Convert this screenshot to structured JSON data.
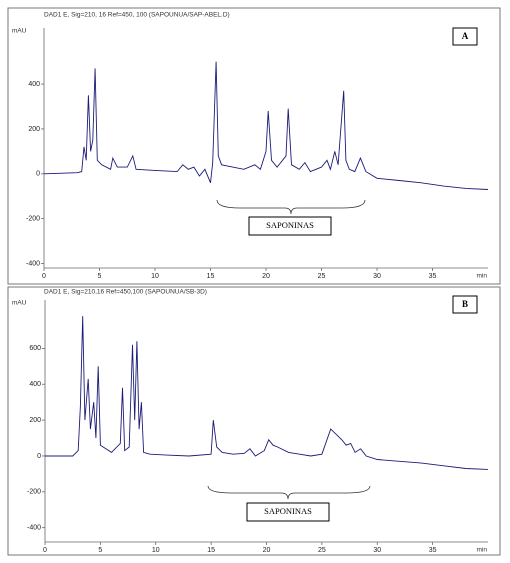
{
  "chart_data": [
    {
      "type": "line",
      "title": "DAD1 E, Sig=210, 16 Ref=450, 100 (SAPOUNUA/SAP-ABEL.D)",
      "y_label": "mAU",
      "x_label": "min",
      "panel_label": "A",
      "annotation": "SAPONINAS",
      "color": "#1c1c78",
      "xlim": [
        0,
        40
      ],
      "xticks": [
        0,
        5,
        10,
        15,
        20,
        25,
        30,
        35
      ],
      "ylim": [
        -420,
        650
      ],
      "yticks": [
        -400,
        -200,
        0,
        200,
        400
      ],
      "x": [
        0,
        3,
        3.4,
        3.6,
        3.8,
        4.0,
        4.2,
        4.4,
        4.6,
        4.8,
        5.2,
        6,
        6.2,
        6.6,
        7.5,
        8,
        8.3,
        10,
        12,
        12.5,
        13,
        13.5,
        14,
        14.5,
        15,
        15.2,
        15.5,
        15.7,
        16,
        17,
        18,
        19,
        19.5,
        20,
        20.2,
        20.5,
        21,
        21.8,
        22,
        22.3,
        23,
        23.5,
        24,
        25,
        25.5,
        25.8,
        26.2,
        26.5,
        27,
        27.2,
        27.5,
        28,
        28.5,
        29,
        30,
        32,
        34,
        36,
        38,
        40
      ],
      "values": [
        0,
        5,
        10,
        120,
        60,
        350,
        100,
        150,
        470,
        60,
        40,
        20,
        70,
        30,
        30,
        80,
        20,
        15,
        10,
        40,
        20,
        30,
        -10,
        20,
        -40,
        50,
        500,
        80,
        40,
        30,
        20,
        40,
        20,
        100,
        280,
        60,
        30,
        80,
        290,
        40,
        20,
        50,
        10,
        30,
        60,
        20,
        100,
        40,
        370,
        60,
        20,
        10,
        70,
        10,
        -20,
        -30,
        -40,
        -55,
        -65,
        -70
      ]
    },
    {
      "type": "line",
      "title": "DAD1 E, Sig=210,16 Ref=450,100 (SAPOUNUA/SB-3D)",
      "y_label": "mAU",
      "x_label": "min",
      "panel_label": "B",
      "annotation": "SAPONINAS",
      "color": "#1c1c78",
      "xlim": [
        0,
        40
      ],
      "xticks": [
        0,
        5,
        10,
        15,
        20,
        25,
        30,
        35
      ],
      "ylim": [
        -480,
        870
      ],
      "yticks": [
        -400,
        -200,
        0,
        200,
        400,
        600
      ],
      "x": [
        0,
        2.5,
        3,
        3.2,
        3.4,
        3.6,
        3.9,
        4.1,
        4.4,
        4.6,
        4.8,
        5.0,
        5.5,
        6,
        6.8,
        7,
        7.2,
        7.6,
        7.9,
        8.1,
        8.3,
        8.5,
        8.7,
        8.9,
        9.5,
        11,
        13,
        15,
        15.2,
        15.5,
        16,
        17,
        18,
        18.5,
        19,
        19.8,
        20.2,
        20.6,
        21,
        22,
        23,
        24,
        25,
        25.8,
        26.3,
        26.8,
        27.2,
        27.6,
        28,
        28.5,
        29,
        30,
        32,
        34,
        36,
        38,
        40
      ],
      "values": [
        0,
        0,
        30,
        280,
        780,
        200,
        430,
        150,
        300,
        100,
        500,
        60,
        40,
        20,
        70,
        380,
        30,
        50,
        620,
        200,
        640,
        150,
        300,
        20,
        10,
        5,
        0,
        10,
        200,
        50,
        20,
        10,
        15,
        40,
        0,
        30,
        90,
        60,
        50,
        20,
        10,
        0,
        10,
        150,
        120,
        90,
        60,
        70,
        20,
        40,
        0,
        -20,
        -30,
        -40,
        -55,
        -70,
        -75
      ]
    }
  ]
}
